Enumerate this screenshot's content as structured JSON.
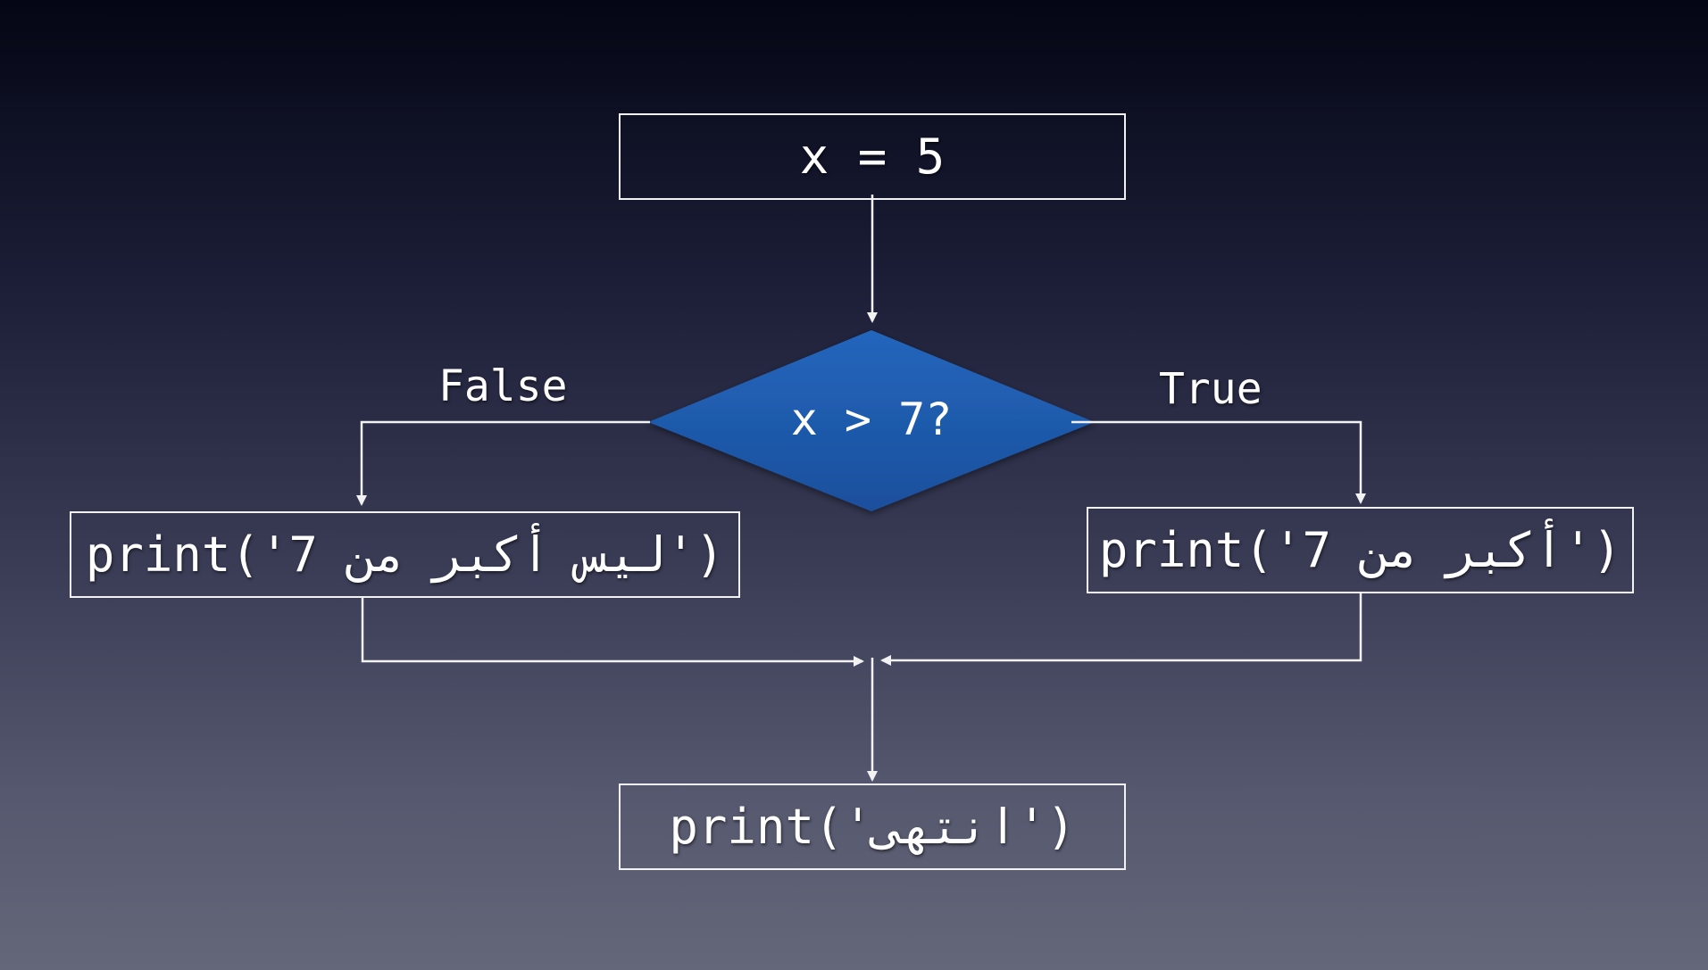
{
  "diagram": {
    "start_box": {
      "text": "x = 5"
    },
    "decision": {
      "text": "x > 7?",
      "fill_color": "#1f5bad"
    },
    "false_branch": {
      "label": "False",
      "box_text": "print('7 ليس أكبر من')"
    },
    "true_branch": {
      "label": "True",
      "box_text": "print('7 أكبر من')"
    },
    "end_box": {
      "text": "print('انتهى')"
    }
  },
  "colors": {
    "line": "#f2f2f2",
    "decision_fill": "#1f5bad",
    "background_top": "#040615",
    "background_bottom": "#646679"
  }
}
